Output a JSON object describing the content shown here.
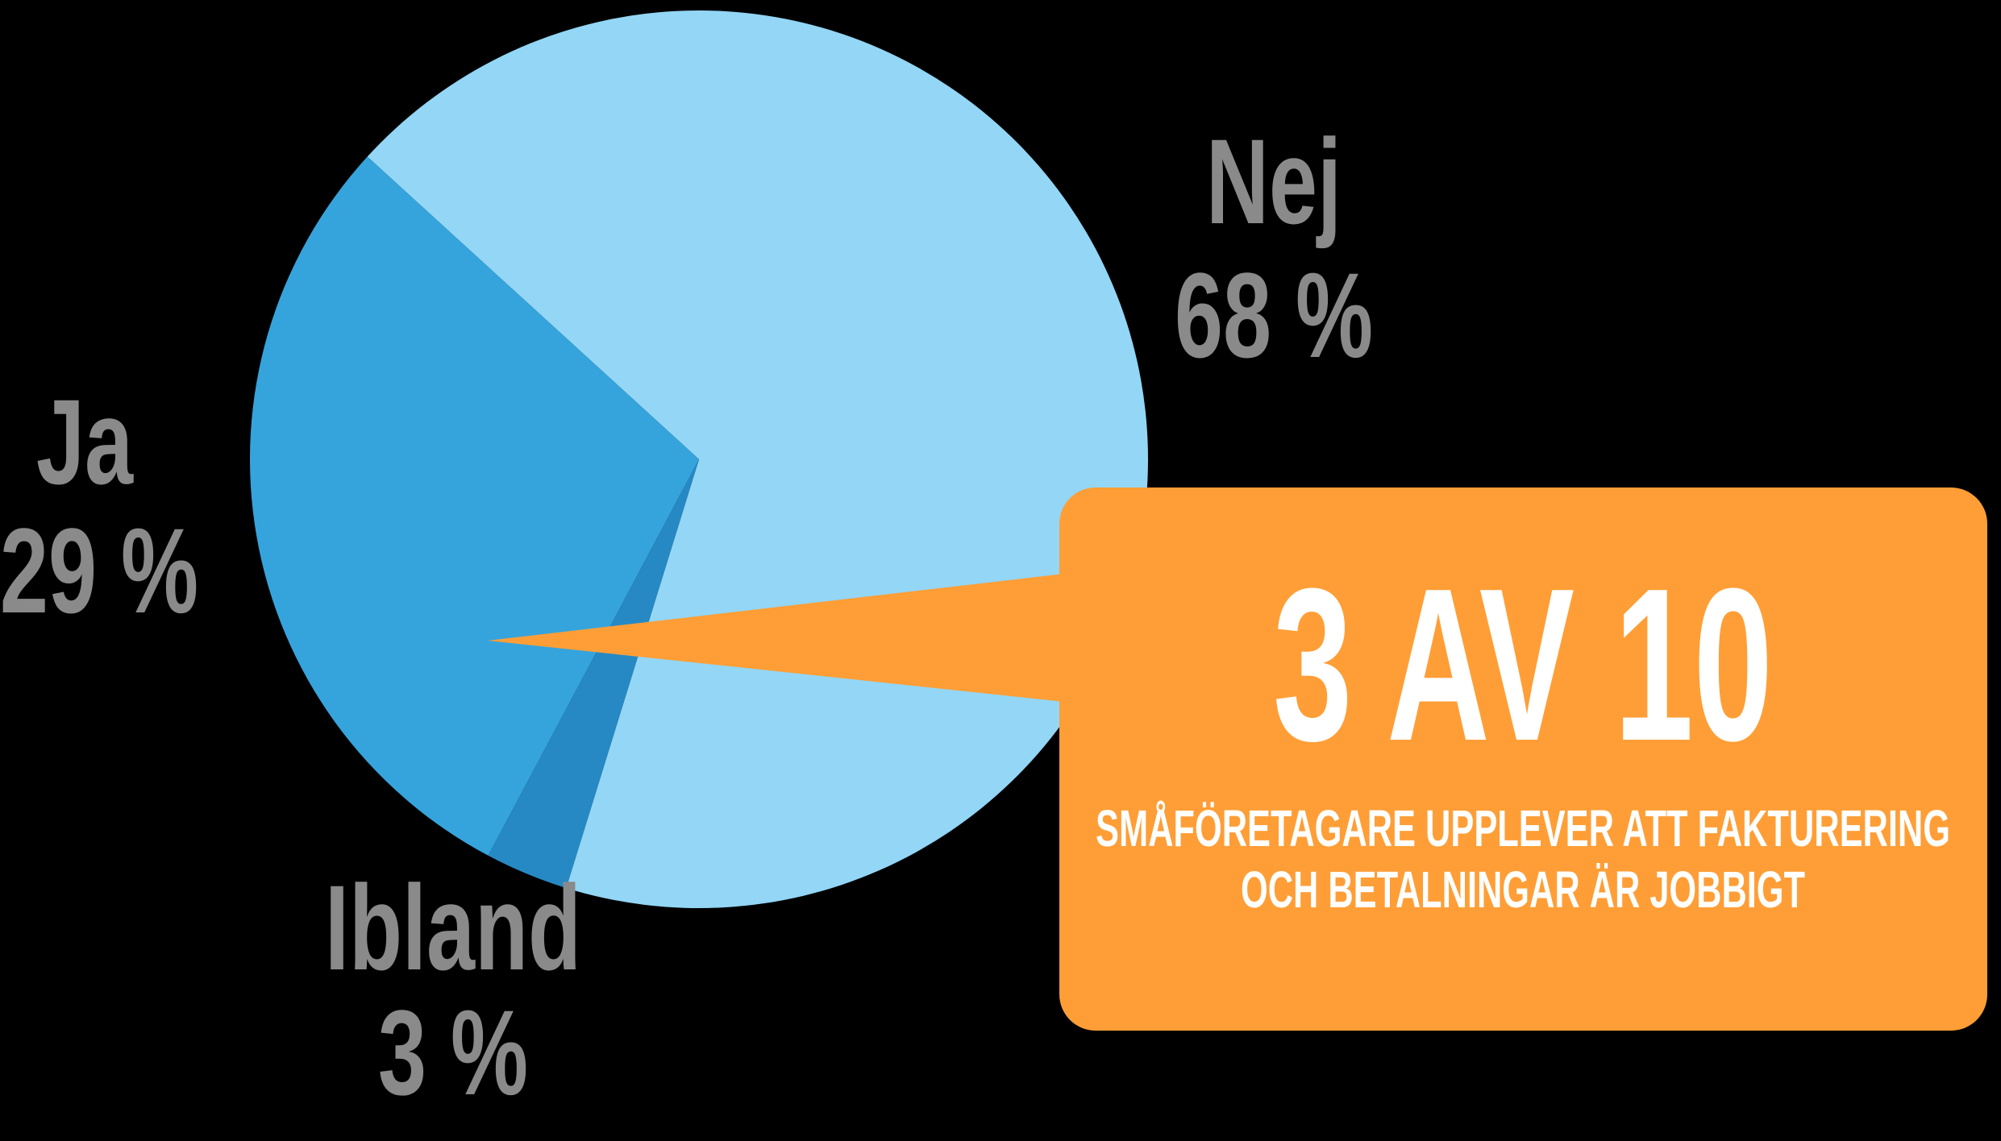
{
  "chart_data": {
    "type": "pie",
    "categories": [
      "Nej",
      "Ibland",
      "Ja"
    ],
    "values": [
      68,
      3,
      29
    ],
    "value_labels": [
      "68 %",
      "3 %",
      "29 %"
    ],
    "colors": [
      "#93d6f5",
      "#2689c4",
      "#35a4dc"
    ],
    "label_color": "#8a8a8a",
    "annotation": {
      "headline": "3 AV 10",
      "lines": [
        "SMÅFÖRETAGARE UPPLEVER ATT FAKTURERING",
        "OCH BETALNINGAR ÄR JOBBIGT"
      ],
      "color": "#ff9e36"
    }
  }
}
